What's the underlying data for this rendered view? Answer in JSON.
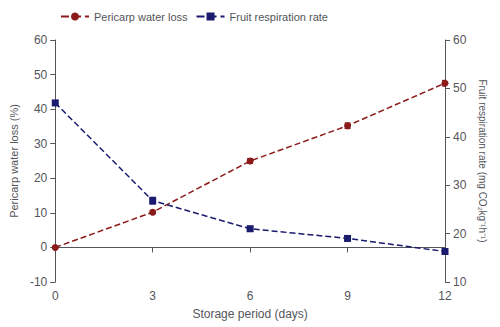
{
  "chart_data": {
    "type": "line",
    "xlabel": "Storage period (days)",
    "ylabel": "Pericarp water loss (%)",
    "y2label": "Fruit respiration rate (mg CO₂kg⁻¹h⁻¹)",
    "x": [
      0,
      3,
      6,
      9,
      12
    ],
    "xlim": [
      0,
      12
    ],
    "xticks": [
      0,
      3,
      6,
      9,
      12
    ],
    "ylim": [
      -10,
      60
    ],
    "yticks": [
      -10,
      0,
      10,
      20,
      30,
      40,
      50,
      60
    ],
    "y2lim": [
      10,
      60
    ],
    "y2ticks": [
      10,
      20,
      30,
      40,
      50,
      60
    ],
    "grid": false,
    "legend": "upper left",
    "series": [
      {
        "name": "Pericarp water loss",
        "color": "#8B1A1A",
        "marker": "circle",
        "line_style": "dashed",
        "axis": "y",
        "values": [
          0.0,
          10.2,
          25.0,
          35.2,
          47.5
        ],
        "errors": [
          0.3,
          0.5,
          0.7,
          0.8,
          0.8
        ]
      },
      {
        "name": "Fruit respiration rate",
        "color": "#1A1A6E",
        "marker": "square",
        "line_style": "dashed",
        "axis": "y2",
        "values": [
          47.0,
          26.8,
          21.0,
          19.0,
          16.3
        ],
        "errors": [
          0.5,
          0.7,
          0.5,
          0.5,
          0.4
        ]
      }
    ]
  }
}
